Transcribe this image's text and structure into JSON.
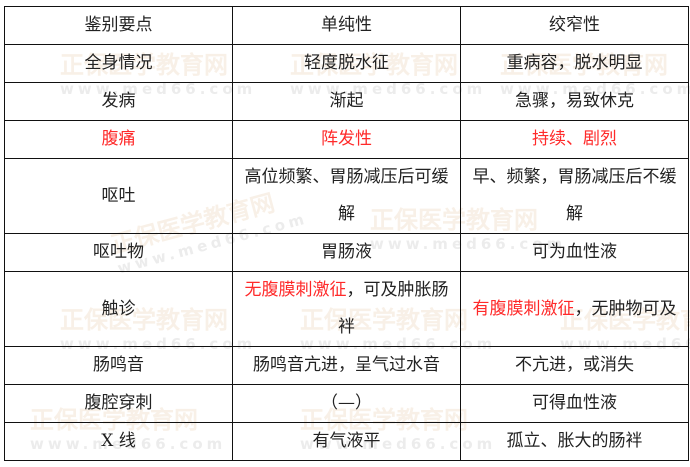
{
  "accent_red": "#ff2a2a",
  "watermark": {
    "text": "正保医学教育网",
    "url": "www.med66.com"
  },
  "table": {
    "header": [
      "鉴别要点",
      "单纯性",
      "绞窄性"
    ],
    "rows": [
      [
        [
          {
            "t": "全身情况"
          }
        ],
        [
          {
            "t": "轻度脱水征"
          }
        ],
        [
          {
            "t": "重病容，脱水明显"
          }
        ]
      ],
      [
        [
          {
            "t": "发病"
          }
        ],
        [
          {
            "t": "渐起"
          }
        ],
        [
          {
            "t": "急骤，易致休克"
          }
        ]
      ],
      [
        [
          {
            "t": "腹痛",
            "red": true
          }
        ],
        [
          {
            "t": "阵发性",
            "red": true
          }
        ],
        [
          {
            "t": "持续、剧烈",
            "red": true
          }
        ]
      ],
      [
        [
          {
            "t": "呕吐"
          }
        ],
        [
          {
            "t": "高位频繁、胃肠减压后可缓解"
          }
        ],
        [
          {
            "t": "早、频繁，胃肠减压后不缓解"
          }
        ]
      ],
      [
        [
          {
            "t": "呕吐物"
          }
        ],
        [
          {
            "t": "胃肠液"
          }
        ],
        [
          {
            "t": "可为血性液"
          }
        ]
      ],
      [
        [
          {
            "t": "触诊"
          }
        ],
        [
          {
            "t": "无腹膜刺激征",
            "red": true
          },
          {
            "t": "，可及肿胀肠袢"
          }
        ],
        [
          {
            "t": "有腹膜刺激征",
            "red": true
          },
          {
            "t": "，无肿物可及"
          }
        ]
      ],
      [
        [
          {
            "t": "肠鸣音"
          }
        ],
        [
          {
            "t": "肠鸣音亢进，呈气过水音"
          }
        ],
        [
          {
            "t": "不亢进，或消失"
          }
        ]
      ],
      [
        [
          {
            "t": "腹腔穿刺"
          }
        ],
        [
          {
            "t": "（—）"
          }
        ],
        [
          {
            "t": "可得血性液"
          }
        ]
      ],
      [
        [
          {
            "t": "X 线"
          }
        ],
        [
          {
            "t": "有气液平"
          }
        ],
        [
          {
            "t": "孤立、胀大的肠袢"
          }
        ]
      ]
    ]
  }
}
